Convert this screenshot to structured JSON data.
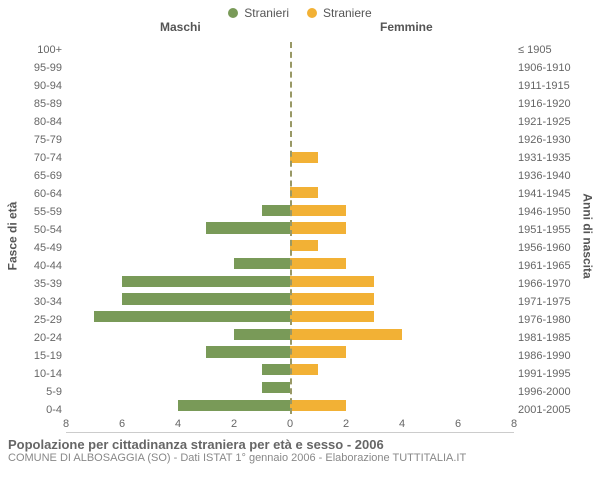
{
  "legend": {
    "male": {
      "label": "Stranieri",
      "color": "#799a58"
    },
    "female": {
      "label": "Straniere",
      "color": "#f2b135"
    }
  },
  "headers": {
    "left": "Maschi",
    "right": "Femmine"
  },
  "axis_titles": {
    "left": "Fasce di età",
    "right": "Anni di nascita"
  },
  "chart": {
    "type": "population-pyramid",
    "xmax": 8,
    "xticks_left": [
      8,
      6,
      4,
      2,
      0
    ],
    "xticks_right": [
      2,
      4,
      6,
      8
    ],
    "background_color": "#ffffff",
    "centerline_color": "#999966",
    "tick_color": "#666666",
    "categories": [
      {
        "age": "100+",
        "year": "≤ 1905",
        "m": 0,
        "f": 0
      },
      {
        "age": "95-99",
        "year": "1906-1910",
        "m": 0,
        "f": 0
      },
      {
        "age": "90-94",
        "year": "1911-1915",
        "m": 0,
        "f": 0
      },
      {
        "age": "85-89",
        "year": "1916-1920",
        "m": 0,
        "f": 0
      },
      {
        "age": "80-84",
        "year": "1921-1925",
        "m": 0,
        "f": 0
      },
      {
        "age": "75-79",
        "year": "1926-1930",
        "m": 0,
        "f": 0
      },
      {
        "age": "70-74",
        "year": "1931-1935",
        "m": 0,
        "f": 1
      },
      {
        "age": "65-69",
        "year": "1936-1940",
        "m": 0,
        "f": 0
      },
      {
        "age": "60-64",
        "year": "1941-1945",
        "m": 0,
        "f": 1
      },
      {
        "age": "55-59",
        "year": "1946-1950",
        "m": 1,
        "f": 2
      },
      {
        "age": "50-54",
        "year": "1951-1955",
        "m": 3,
        "f": 2
      },
      {
        "age": "45-49",
        "year": "1956-1960",
        "m": 0,
        "f": 1
      },
      {
        "age": "40-44",
        "year": "1961-1965",
        "m": 2,
        "f": 2
      },
      {
        "age": "35-39",
        "year": "1966-1970",
        "m": 6,
        "f": 3
      },
      {
        "age": "30-34",
        "year": "1971-1975",
        "m": 6,
        "f": 3
      },
      {
        "age": "25-29",
        "year": "1976-1980",
        "m": 7,
        "f": 3
      },
      {
        "age": "20-24",
        "year": "1981-1985",
        "m": 2,
        "f": 4
      },
      {
        "age": "15-19",
        "year": "1986-1990",
        "m": 3,
        "f": 2
      },
      {
        "age": "10-14",
        "year": "1991-1995",
        "m": 1,
        "f": 1
      },
      {
        "age": "5-9",
        "year": "1996-2000",
        "m": 1,
        "f": 0
      },
      {
        "age": "0-4",
        "year": "2001-2005",
        "m": 4,
        "f": 2
      }
    ]
  },
  "caption": {
    "main": "Popolazione per cittadinanza straniera per età e sesso - 2006",
    "sub": "COMUNE DI ALBOSAGGIA (SO) - Dati ISTAT 1° gennaio 2006 - Elaborazione TUTTITALIA.IT"
  }
}
